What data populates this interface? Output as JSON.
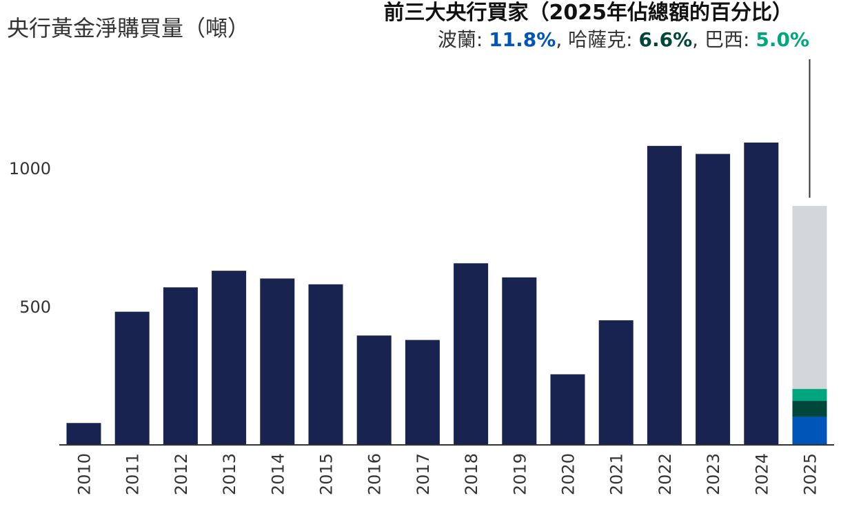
{
  "chart_data": {
    "type": "bar",
    "ylabel": "央行黃金淨購買量（噸）",
    "categories": [
      "2010",
      "2011",
      "2012",
      "2013",
      "2014",
      "2015",
      "2016",
      "2017",
      "2018",
      "2019",
      "2020",
      "2021",
      "2022",
      "2023",
      "2024",
      "2025"
    ],
    "values": [
      79,
      481,
      569,
      629,
      601,
      580,
      395,
      379,
      656,
      605,
      255,
      450,
      1080,
      1051,
      1092,
      863
    ],
    "yticks": [
      500,
      1000
    ],
    "ylim": [
      0,
      1250
    ],
    "bar_color": "#182350",
    "highlight": {
      "category": "2025",
      "total": 863,
      "base_color": "#d3d7da",
      "segments": [
        {
          "name": "波蘭",
          "share": 11.8,
          "value": 102,
          "color": "#0055b8"
        },
        {
          "name": "哈薩克",
          "share": 6.6,
          "value": 57,
          "color": "#00463a"
        },
        {
          "name": "巴西",
          "share": 5.0,
          "value": 43,
          "color": "#00a67e"
        }
      ],
      "title": "前三大央行買家（2025年佔總額的百分比）"
    }
  }
}
